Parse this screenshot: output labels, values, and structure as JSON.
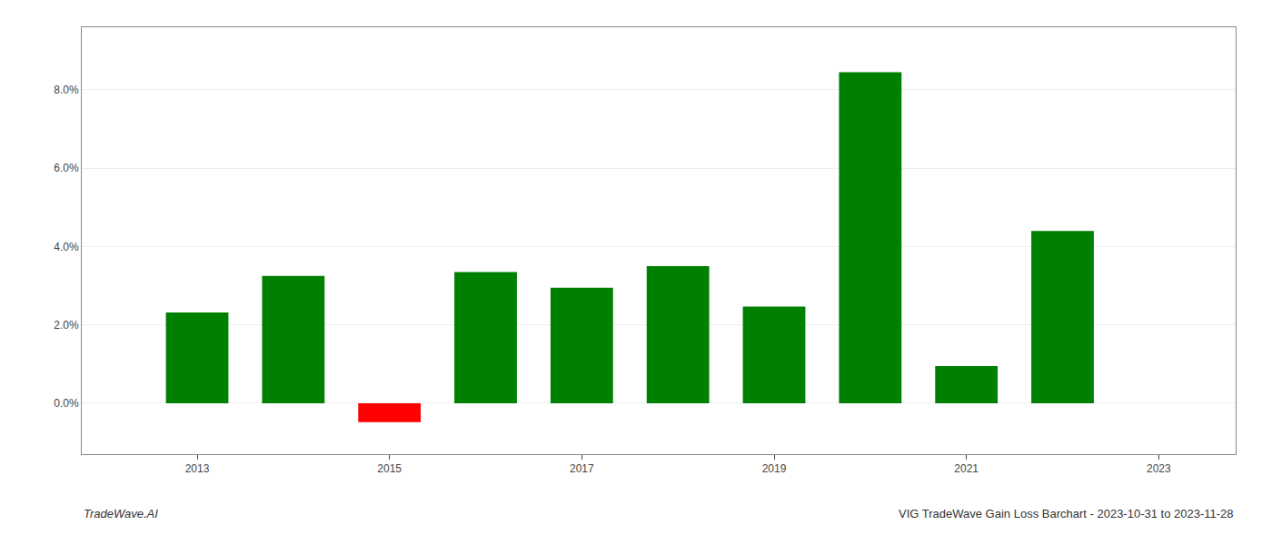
{
  "chart_data": {
    "type": "bar",
    "x": [
      2013,
      2014,
      2015,
      2016,
      2017,
      2018,
      2019,
      2020,
      2021,
      2022
    ],
    "values": [
      0.0232,
      0.0325,
      -0.0048,
      0.0335,
      0.0295,
      0.035,
      0.0247,
      0.0845,
      0.0095,
      0.044
    ],
    "colors": [
      "#008000",
      "#008000",
      "#ff0000",
      "#008000",
      "#008000",
      "#008000",
      "#008000",
      "#008000",
      "#008000",
      "#008000"
    ],
    "xlim": [
      2011.8,
      2023.8
    ],
    "xticks": [
      2013,
      2015,
      2017,
      2019,
      2021,
      2023
    ],
    "ylim": [
      -0.013,
      0.096
    ],
    "yticks": [
      {
        "value": 0.0,
        "label": "0.0%"
      },
      {
        "value": 0.02,
        "label": "2.0%"
      },
      {
        "value": 0.04,
        "label": "4.0%"
      },
      {
        "value": 0.06,
        "label": "6.0%"
      },
      {
        "value": 0.08,
        "label": "8.0%"
      }
    ],
    "grid": true,
    "annotations": [
      "TradeWave.AI",
      "VIG TradeWave Gain Loss Barchart - 2023-10-31 to 2023-11-28"
    ]
  }
}
